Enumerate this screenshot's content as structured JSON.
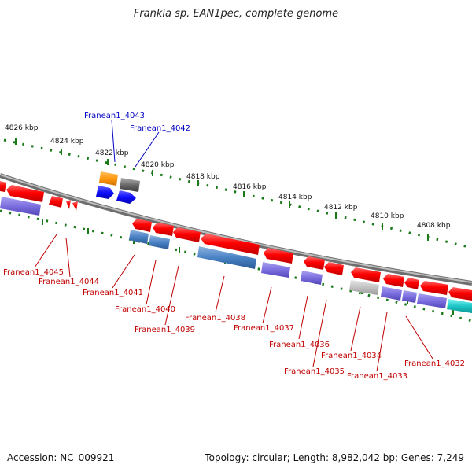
{
  "title": "Frankia sp. EAN1pec, complete genome",
  "footer": {
    "accession": "Accession: NC_009921",
    "summary": "Topology: circular; Length: 8,982,042 bp; Genes: 7,249"
  },
  "colors": {
    "backbone": "#8a8a8a",
    "tick": "#1a7a1a",
    "label_forward": "#0000c0",
    "label_reverse": "#c00000"
  },
  "kbp_labels": [
    {
      "text": "4826 kbp"
    },
    {
      "text": "4824 kbp"
    },
    {
      "text": "4822 kbp"
    },
    {
      "text": "4820 kbp"
    },
    {
      "text": "4818 kbp"
    },
    {
      "text": "4816 kbp"
    },
    {
      "text": "4814 kbp"
    },
    {
      "text": "4812 kbp"
    },
    {
      "text": "4810 kbp"
    },
    {
      "text": "4808 kbp"
    }
  ],
  "gene_labels": [
    {
      "text": "Franean1_4043",
      "strand": "forward"
    },
    {
      "text": "Franean1_4042",
      "strand": "forward"
    },
    {
      "text": "Franean1_4045",
      "strand": "reverse"
    },
    {
      "text": "Franean1_4044",
      "strand": "reverse"
    },
    {
      "text": "Franean1_4041",
      "strand": "reverse"
    },
    {
      "text": "Franean1_4040",
      "strand": "reverse"
    },
    {
      "text": "Franean1_4039",
      "strand": "reverse"
    },
    {
      "text": "Franean1_4038",
      "strand": "reverse"
    },
    {
      "text": "Franean1_4037",
      "strand": "reverse"
    },
    {
      "text": "Franean1_4036",
      "strand": "reverse"
    },
    {
      "text": "Franean1_4035",
      "strand": "reverse"
    },
    {
      "text": "Franean1_4034",
      "strand": "reverse"
    },
    {
      "text": "Franean1_4033",
      "strand": "reverse"
    },
    {
      "text": "Franean1_4032",
      "strand": "reverse"
    }
  ]
}
